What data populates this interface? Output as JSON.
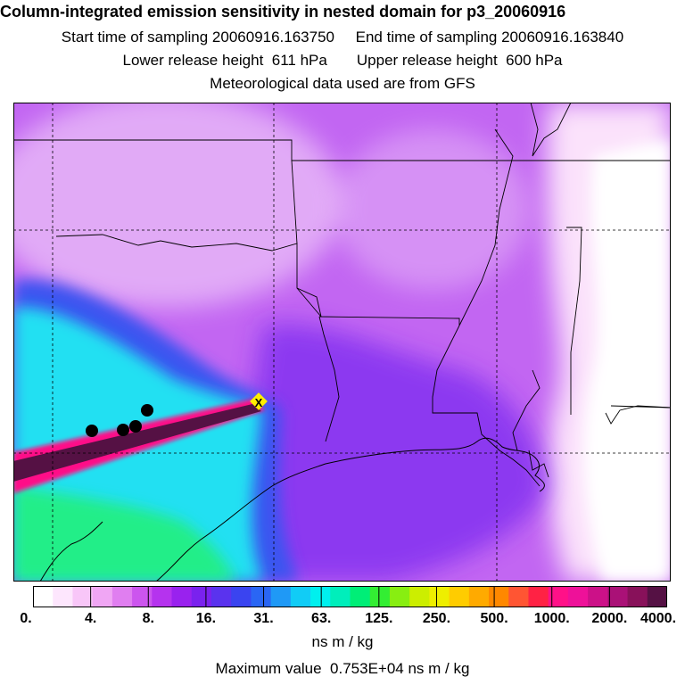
{
  "header": {
    "title": "Column-integrated emission sensitivity in nested domain for p3_20060916",
    "sampling_line": "Start time of sampling 20060916.163750     End time of sampling 20060916.163840",
    "release_line": "Lower release height  611 hPa       Upper release height  600 hPa",
    "met_line": "Meteorological data used are from GFS"
  },
  "colorbar": {
    "colors": [
      "#ffffff",
      "#fde6fd",
      "#f8c6f8",
      "#f0a6f4",
      "#e07ef0",
      "#cc55ee",
      "#b533ee",
      "#9922ee",
      "#7a22ee",
      "#5a33ee",
      "#3a44f0",
      "#2a66f4",
      "#1f99f6",
      "#11ccf6",
      "#00f0ee",
      "#00eebb",
      "#00ee77",
      "#33ee33",
      "#88ee11",
      "#ccee00",
      "#eeee00",
      "#ffcc00",
      "#ffaa00",
      "#ff8800",
      "#ff5533",
      "#ff2244",
      "#ff1188",
      "#ee1199",
      "#cc1188",
      "#aa1177",
      "#88115a",
      "#551144"
    ],
    "tick_labels": [
      "0.",
      "4.",
      "8.",
      "16.",
      "31.",
      "63.",
      "125.",
      "250.",
      "500.",
      "1000.",
      "2000.",
      "4000."
    ],
    "units": "ns m / kg"
  },
  "footer": {
    "max_value": "Maximum value  0.753E+04 ns m / kg"
  },
  "map": {
    "colors": {
      "background": "#c266f2",
      "light_east": "#fbe2fb",
      "dark_purple": "#7a2cf0",
      "blue": "#3a55f0",
      "cyan": "#22e0f2",
      "green": "#22ee88",
      "plume_outer": "#ff1188",
      "plume_inner": "#551144",
      "dots": "#000000"
    },
    "release_location_label": "X"
  }
}
